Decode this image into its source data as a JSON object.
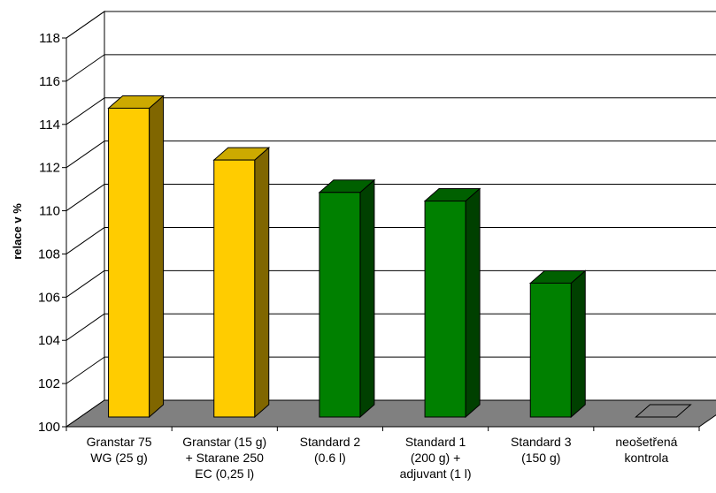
{
  "chart_data": {
    "type": "bar",
    "style": "3d",
    "title": "",
    "xlabel": "",
    "ylabel": "relace v %",
    "ylim": [
      100,
      118
    ],
    "yticks": [
      "100",
      "102",
      "104",
      "106",
      "108",
      "110",
      "112",
      "114",
      "116",
      "118"
    ],
    "grid": true,
    "legend": "none",
    "categories": [
      [
        "Granstar 75",
        "WG  (25 g)"
      ],
      [
        "Granstar (15 g)",
        "+ Starane 250",
        "EC (0,25 l)"
      ],
      [
        "Standard 2",
        "(0.6 l)"
      ],
      [
        "Standard 1",
        "(200 g) +",
        "adjuvant (1 l)"
      ],
      [
        "Standard 3",
        "(150 g)"
      ],
      [
        "neošetřená",
        "kontrola"
      ]
    ],
    "values": [
      114.3,
      111.9,
      110.4,
      110.0,
      106.2,
      100.0
    ],
    "bar_colors": [
      "yellow",
      "yellow",
      "green",
      "green",
      "green",
      "gray"
    ],
    "colors": {
      "yellow": {
        "front": "#ffcc00",
        "top": "#ccaa00",
        "side": "#806600"
      },
      "green": {
        "front": "#008000",
        "top": "#006000",
        "side": "#004000"
      },
      "gray": {
        "front": "#808080",
        "top": "#808080",
        "side": "#606060"
      },
      "floor": "#808080",
      "wall": "#ffffff",
      "grid": "#000000"
    }
  }
}
